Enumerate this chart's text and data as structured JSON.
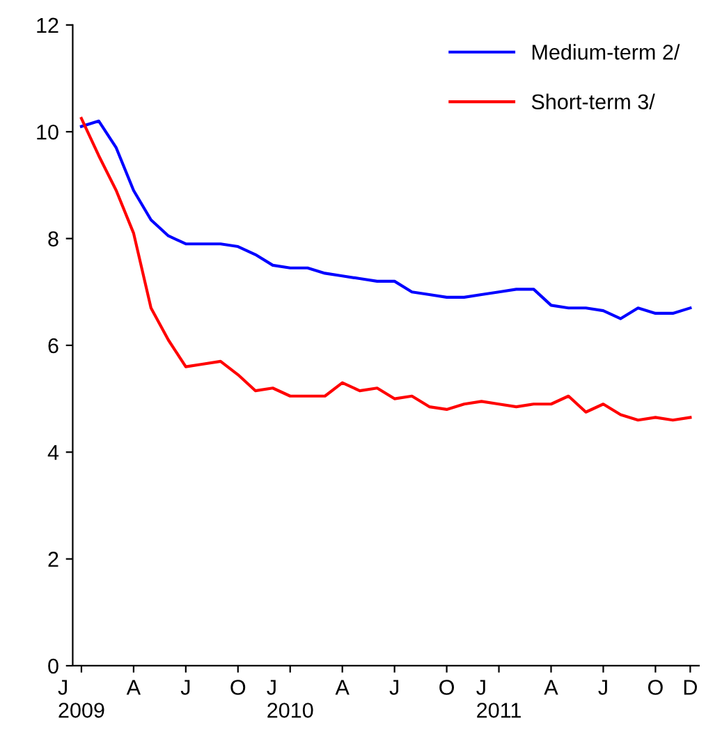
{
  "chart_data": {
    "type": "line",
    "categories": [
      "J\n2009",
      null,
      null,
      "A",
      null,
      null,
      "J",
      null,
      null,
      "O",
      null,
      null,
      "J\n2010",
      null,
      null,
      "A",
      null,
      null,
      "J",
      null,
      null,
      "O",
      null,
      null,
      "J\n2011",
      null,
      null,
      "A",
      null,
      null,
      "J",
      null,
      null,
      "O",
      null,
      "D"
    ],
    "series": [
      {
        "name": "Medium-term 2/",
        "color": "#0000ff",
        "values": [
          10.1,
          10.2,
          9.7,
          8.9,
          8.35,
          8.05,
          7.9,
          7.9,
          7.9,
          7.85,
          7.7,
          7.5,
          7.45,
          7.45,
          7.35,
          7.3,
          7.25,
          7.2,
          7.2,
          7.0,
          6.95,
          6.9,
          6.9,
          6.95,
          7.0,
          7.05,
          7.05,
          6.75,
          6.7,
          6.7,
          6.65,
          6.5,
          6.7,
          6.6,
          6.6,
          6.7
        ]
      },
      {
        "name": "Short-term 3/",
        "color": "#ff0000",
        "values": [
          10.25,
          9.55,
          8.9,
          8.1,
          6.7,
          6.1,
          5.6,
          5.65,
          5.7,
          5.45,
          5.15,
          5.2,
          5.05,
          5.05,
          5.05,
          5.3,
          5.15,
          5.2,
          5.0,
          5.05,
          4.85,
          4.8,
          4.9,
          4.95,
          4.9,
          4.85,
          4.9,
          4.9,
          5.05,
          4.75,
          4.9,
          4.7,
          4.6,
          4.65,
          4.6,
          4.65
        ]
      }
    ],
    "ylim": [
      0,
      12
    ],
    "yticks": [
      0,
      2,
      4,
      6,
      8,
      10,
      12
    ],
    "grid": false,
    "legend": "top right",
    "marker": "none",
    "line_style": "solid"
  }
}
